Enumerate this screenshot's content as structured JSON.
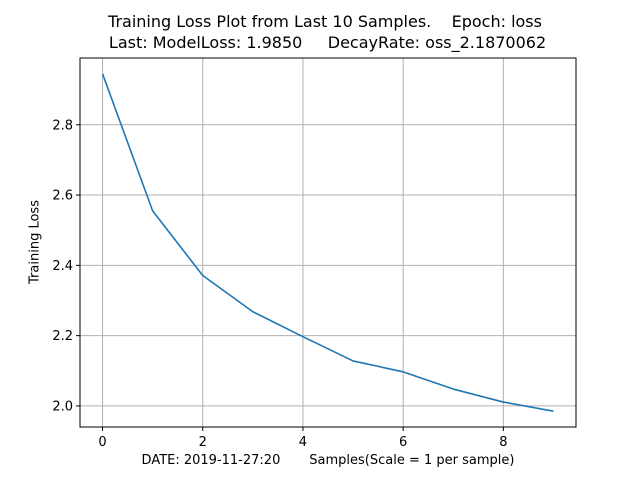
{
  "chart_data": {
    "type": "line",
    "title_lines": [
      "Training Loss Plot from Last 10 Samples.    Epoch: loss",
      " Last: ModelLoss: 1.9850     DecayRate: oss_2.1870062"
    ],
    "xlabel": "DATE: 2019-11-27:20       Samples(Scale = 1 per sample)",
    "ylabel": "Training Loss",
    "x": [
      0,
      1,
      2,
      3,
      4,
      5,
      6,
      7,
      8,
      9
    ],
    "series": [
      {
        "values": [
          2.945,
          2.555,
          2.371,
          2.268,
          2.197,
          2.128,
          2.097,
          2.048,
          2.011,
          1.985
        ],
        "color": "#1f77b4"
      }
    ],
    "xlim": [
      -0.45,
      9.45
    ],
    "ylim": [
      1.94,
      2.99
    ],
    "xticks": [
      0,
      2,
      4,
      6,
      8
    ],
    "xtick_labels": [
      "0",
      "2",
      "4",
      "6",
      "8"
    ],
    "yticks": [
      2.0,
      2.2,
      2.4,
      2.6,
      2.8
    ],
    "ytick_labels": [
      "2.0",
      "2.2",
      "2.4",
      "2.6",
      "2.8"
    ],
    "grid": true,
    "grid_color": "#b0b0b0",
    "axis_color": "#000000",
    "legend": false
  }
}
